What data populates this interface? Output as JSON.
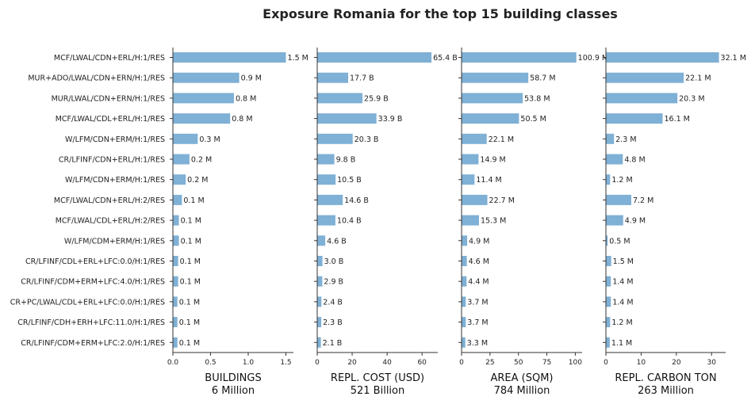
{
  "title": "Exposure Romania for the top 15 building classes",
  "categories": [
    "MCF/LWAL/CDN+ERL/H:1/RES",
    "MUR+ADO/LWAL/CDN+ERN/H:1/RES",
    "MUR/LWAL/CDN+ERN/H:1/RES",
    "MCF/LWAL/CDL+ERL/H:1/RES",
    "W/LFM/CDN+ERM/H:1/RES",
    "CR/LFINF/CDN+ERL/H:1/RES",
    "W/LFM/CDN+ERM/H:1/RES",
    "MCF/LWAL/CDN+ERL/H:2/RES",
    "MCF/LWAL/CDL+ERL/H:2/RES",
    "W/LFM/CDM+ERM/H:1/RES",
    "CR/LFINF/CDL+ERL+LFC:0.0/H:1/RES",
    "CR/LFINF/CDM+ERM+LFC:4.0/H:1/RES",
    "CR+PC/LWAL/CDL+ERL+LFC:0.0/H:1/RES",
    "CR/LFINF/CDH+ERH+LFC:11.0/H:1/RES",
    "CR/LFINF/CDM+ERM+LFC:2.0/H:1/RES"
  ],
  "bar_color": "#7fb0d5",
  "chart_data": [
    {
      "type": "bar",
      "orientation": "horizontal",
      "xlabel": "BUILDINGS",
      "subtitle": "6 Million",
      "xlim": [
        0,
        1.6
      ],
      "ticks": [
        0,
        0.5,
        1,
        1.5
      ],
      "tick_labels": [
        "0.0",
        "0.5",
        "1.0",
        "1.5"
      ],
      "values": [
        1.5,
        0.88,
        0.81,
        0.76,
        0.33,
        0.22,
        0.17,
        0.12,
        0.08,
        0.08,
        0.07,
        0.07,
        0.06,
        0.06,
        0.06
      ],
      "data_labels": [
        "1.5 M",
        "0.9 M",
        "0.8 M",
        "0.8 M",
        "0.3 M",
        "0.2 M",
        "0.2 M",
        "0.1 M",
        "0.1 M",
        "0.1 M",
        "0.1 M",
        "0.1 M",
        "0.1 M",
        "0.1 M",
        "0.1 M"
      ]
    },
    {
      "type": "bar",
      "orientation": "horizontal",
      "xlabel": "REPL. COST (USD)",
      "subtitle": "521 Billion",
      "xlim": [
        0,
        69
      ],
      "ticks": [
        0,
        20,
        40,
        60
      ],
      "tick_labels": [
        "0",
        "20",
        "40",
        "60"
      ],
      "values": [
        65.4,
        17.7,
        25.9,
        33.9,
        20.3,
        9.8,
        10.5,
        14.6,
        10.4,
        4.6,
        3.0,
        2.9,
        2.4,
        2.3,
        2.1
      ],
      "data_labels": [
        "65.4 B",
        "17.7 B",
        "25.9 B",
        "33.9 B",
        "20.3 B",
        "9.8 B",
        "10.5 B",
        "14.6 B",
        "10.4 B",
        "4.6 B",
        "3.0 B",
        "2.9 B",
        "2.4 B",
        "2.3 B",
        "2.1 B"
      ]
    },
    {
      "type": "bar",
      "orientation": "horizontal",
      "xlabel": "AREA (SQM)",
      "subtitle": "784 Million",
      "xlim": [
        0,
        106
      ],
      "ticks": [
        0,
        25,
        50,
        75,
        100
      ],
      "tick_labels": [
        "0",
        "25",
        "50",
        "75",
        "100"
      ],
      "values": [
        100.9,
        58.7,
        53.8,
        50.5,
        22.1,
        14.9,
        11.4,
        22.7,
        15.3,
        4.9,
        4.6,
        4.4,
        3.7,
        3.7,
        3.3
      ],
      "data_labels": [
        "100.9 M",
        "58.7 M",
        "53.8 M",
        "50.5 M",
        "22.1 M",
        "14.9 M",
        "11.4 M",
        "22.7 M",
        "15.3 M",
        "4.9 M",
        "4.6 M",
        "4.4 M",
        "3.7 M",
        "3.7 M",
        "3.3 M"
      ]
    },
    {
      "type": "bar",
      "orientation": "horizontal",
      "xlabel": "REPL. CARBON TON",
      "subtitle": "263 Million",
      "xlim": [
        0,
        34
      ],
      "ticks": [
        0,
        10,
        20,
        30
      ],
      "tick_labels": [
        "0",
        "10",
        "20",
        "30"
      ],
      "values": [
        32.1,
        22.1,
        20.3,
        16.1,
        2.3,
        4.8,
        1.2,
        7.2,
        4.9,
        0.5,
        1.5,
        1.4,
        1.4,
        1.2,
        1.1
      ],
      "data_labels": [
        "32.1 M",
        "22.1 M",
        "20.3 M",
        "16.1 M",
        "2.3 M",
        "4.8 M",
        "1.2 M",
        "7.2 M",
        "4.9 M",
        "0.5 M",
        "1.5 M",
        "1.4 M",
        "1.4 M",
        "1.2 M",
        "1.1 M"
      ]
    }
  ]
}
